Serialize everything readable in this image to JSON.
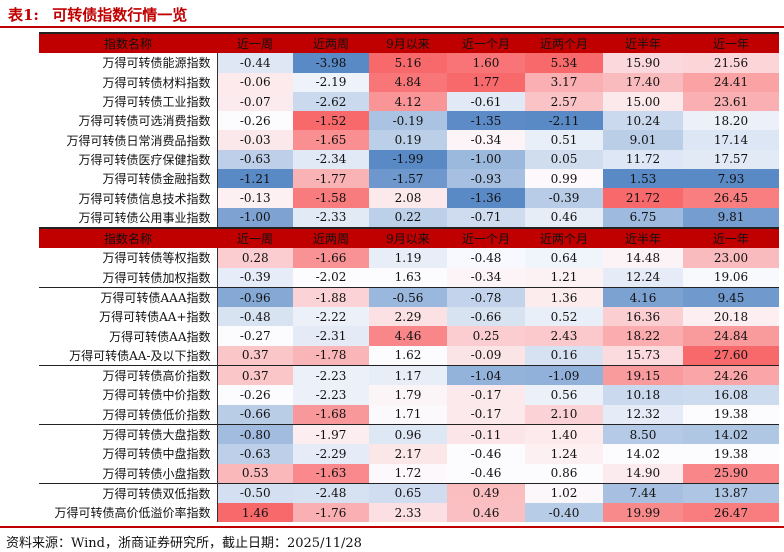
{
  "title": {
    "label": "表1:",
    "text": "可转债指数行情一览"
  },
  "headers": [
    "指数名称",
    "近一周",
    "近两周",
    "9月以来",
    "近一个月",
    "近两个月",
    "近半年",
    "近一年"
  ],
  "section1": [
    {
      "name": "万得可转债能源指数",
      "v": [
        "-0.44",
        "-3.98",
        "5.16",
        "1.60",
        "5.34",
        "15.90",
        "21.56"
      ]
    },
    {
      "name": "万得可转债材料指数",
      "v": [
        "-0.06",
        "-2.19",
        "4.84",
        "1.77",
        "3.17",
        "17.40",
        "24.41"
      ]
    },
    {
      "name": "万得可转债工业指数",
      "v": [
        "-0.07",
        "-2.62",
        "4.12",
        "-0.61",
        "2.57",
        "15.00",
        "23.61"
      ]
    },
    {
      "name": "万得可转债可选消费指数",
      "v": [
        "-0.26",
        "-1.52",
        "-0.19",
        "-1.35",
        "-2.11",
        "10.24",
        "18.20"
      ]
    },
    {
      "name": "万得可转债日常消费品指数",
      "v": [
        "-0.03",
        "-1.65",
        "0.19",
        "-0.34",
        "0.51",
        "9.01",
        "17.14"
      ]
    },
    {
      "name": "万得可转债医疗保健指数",
      "v": [
        "-0.63",
        "-2.34",
        "-1.99",
        "-1.00",
        "0.05",
        "11.72",
        "17.57"
      ]
    },
    {
      "name": "万得可转债金融指数",
      "v": [
        "-1.21",
        "-1.77",
        "-1.57",
        "-0.93",
        "0.99",
        "1.53",
        "7.93"
      ]
    },
    {
      "name": "万得可转债信息技术指数",
      "v": [
        "-0.13",
        "-1.58",
        "2.08",
        "-1.36",
        "-0.39",
        "21.72",
        "26.45"
      ]
    },
    {
      "name": "万得可转债公用事业指数",
      "v": [
        "-1.00",
        "-2.33",
        "0.22",
        "-0.71",
        "0.46",
        "6.75",
        "9.81"
      ]
    }
  ],
  "section2": [
    {
      "name": "万得可转债等权指数",
      "v": [
        "0.28",
        "-1.66",
        "1.19",
        "-0.48",
        "0.64",
        "14.48",
        "23.00"
      ],
      "gtop": false
    },
    {
      "name": "万得可转债加权指数",
      "v": [
        "-0.39",
        "-2.02",
        "1.63",
        "-0.34",
        "1.21",
        "12.24",
        "19.06"
      ],
      "gtop": false
    },
    {
      "name": "万得可转债AAA指数",
      "v": [
        "-0.96",
        "-1.88",
        "-0.56",
        "-0.78",
        "1.36",
        "4.16",
        "9.45"
      ],
      "gtop": true
    },
    {
      "name": "万得可转债AA+指数",
      "v": [
        "-0.48",
        "-2.22",
        "2.29",
        "-0.66",
        "0.52",
        "16.36",
        "20.18"
      ],
      "gtop": false
    },
    {
      "name": "万得可转债AA指数",
      "v": [
        "-0.27",
        "-2.31",
        "4.46",
        "0.25",
        "2.43",
        "18.22",
        "24.84"
      ],
      "gtop": false
    },
    {
      "name": "万得可转债AA-及以下指数",
      "v": [
        "0.37",
        "-1.78",
        "1.62",
        "-0.09",
        "0.16",
        "15.73",
        "27.60"
      ],
      "gtop": false
    },
    {
      "name": "万得可转债高价指数",
      "v": [
        "0.37",
        "-2.23",
        "1.17",
        "-1.04",
        "-1.09",
        "19.15",
        "24.26"
      ],
      "gtop": true
    },
    {
      "name": "万得可转债中价指数",
      "v": [
        "-0.26",
        "-2.23",
        "1.79",
        "-0.17",
        "0.56",
        "10.18",
        "16.08"
      ],
      "gtop": false
    },
    {
      "name": "万得可转债低价指数",
      "v": [
        "-0.66",
        "-1.68",
        "1.71",
        "-0.17",
        "2.10",
        "12.32",
        "19.38"
      ],
      "gtop": false
    },
    {
      "name": "万得可转债大盘指数",
      "v": [
        "-0.80",
        "-1.97",
        "0.96",
        "-0.11",
        "1.40",
        "8.50",
        "14.02"
      ],
      "gtop": true
    },
    {
      "name": "万得可转债中盘指数",
      "v": [
        "-0.63",
        "-2.29",
        "2.17",
        "-0.46",
        "1.24",
        "14.02",
        "19.38"
      ],
      "gtop": false
    },
    {
      "name": "万得可转债小盘指数",
      "v": [
        "0.53",
        "-1.63",
        "1.72",
        "-0.46",
        "0.86",
        "14.90",
        "25.90"
      ],
      "gtop": false
    },
    {
      "name": "万得可转债双低指数",
      "v": [
        "-0.50",
        "-2.48",
        "0.65",
        "0.49",
        "1.02",
        "7.44",
        "13.87"
      ],
      "gtop": true
    },
    {
      "name": "万得可转债高价低溢价率指数",
      "v": [
        "1.46",
        "-1.76",
        "2.33",
        "0.46",
        "-0.40",
        "19.99",
        "26.47"
      ],
      "gtop": false
    }
  ],
  "source": "资料来源：Wind，浙商证券研究所，截止日期：2025/11/28",
  "colors": {
    "header": "#c00000",
    "pos": "#f8696b",
    "neg": "#5a8ac6"
  }
}
